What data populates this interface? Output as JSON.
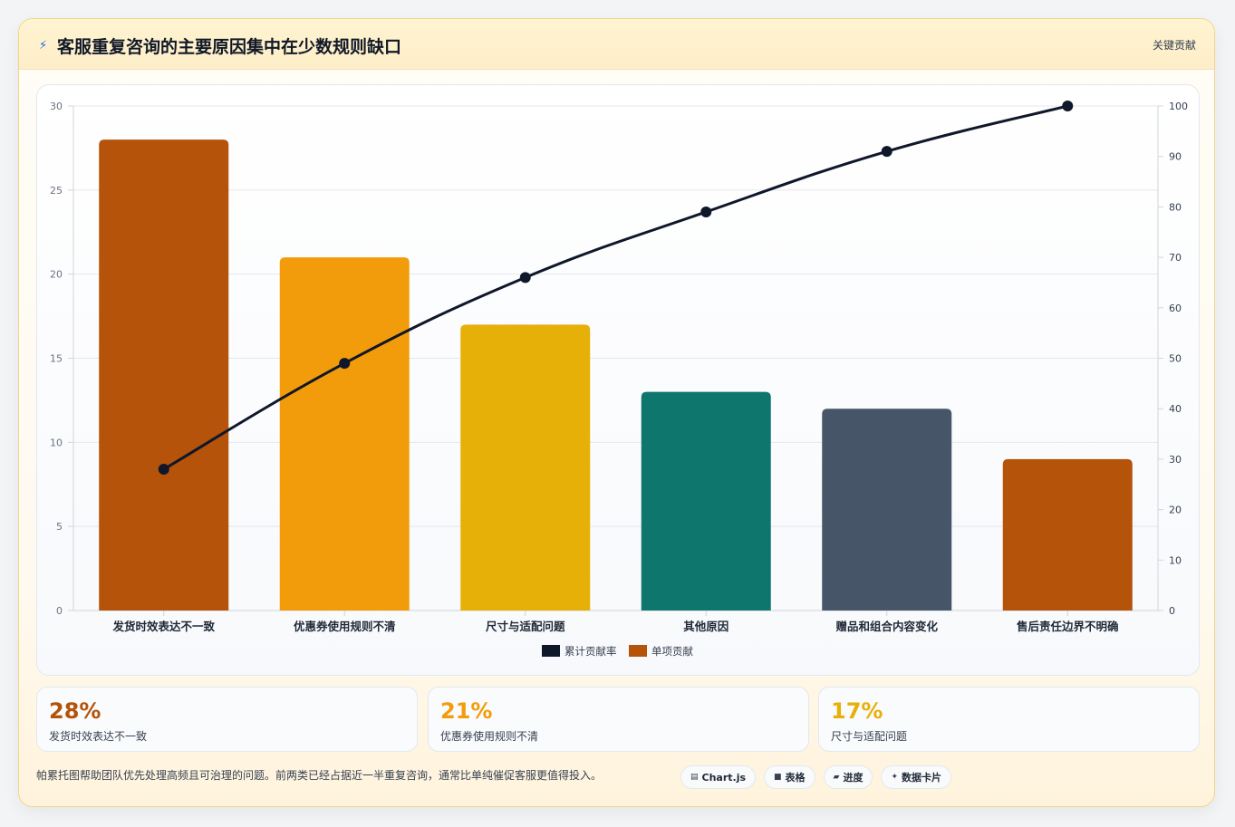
{
  "header": {
    "title": "客服重复咨询的主要原因集中在少数规则缺口",
    "title_icon": "lightning-icon",
    "right_label": "关键贡献"
  },
  "chart_data": {
    "type": "bar",
    "categories": [
      "发货时效表达不一致",
      "优惠券使用规则不清",
      "尺寸与适配问题",
      "其他原因",
      "赠品和组合内容变化",
      "售后责任边界不明确"
    ],
    "series": [
      {
        "name": "单项贡献",
        "type": "bar",
        "axis": "left",
        "values": [
          28,
          21,
          17,
          13,
          12,
          9
        ]
      },
      {
        "name": "累计贡献率",
        "type": "line",
        "axis": "right",
        "values": [
          28,
          49,
          66,
          79,
          91,
          100
        ]
      }
    ],
    "bar_colors": [
      "#b45309",
      "#f39c0b",
      "#e7b008",
      "#0f766e",
      "#475569",
      "#b45309"
    ],
    "line_color": "#0f172a",
    "left_axis": {
      "ylim": [
        0,
        30
      ],
      "ticks": [
        "0",
        "5",
        "10",
        "15",
        "20",
        "25",
        "30"
      ]
    },
    "right_axis": {
      "ylim": [
        0,
        100
      ],
      "ticks": [
        "0",
        "10",
        "20",
        "30",
        "40",
        "50",
        "60",
        "70",
        "80",
        "90",
        "100"
      ]
    },
    "legend": [
      {
        "label": "累计贡献率",
        "color": "#0f172a"
      },
      {
        "label": "单项贡献",
        "color": "#b45309"
      }
    ],
    "legend_position": "bottom",
    "grid": true
  },
  "stats": [
    {
      "value": "28%",
      "label": "发货时效表达不一致",
      "color": "#b45309"
    },
    {
      "value": "21%",
      "label": "优惠券使用规则不清",
      "color": "#f39c0b"
    },
    {
      "value": "17%",
      "label": "尺寸与适配问题",
      "color": "#e7b008"
    }
  ],
  "footer": {
    "text": "帕累托图帮助团队优先处理高频且可治理的问题。前两类已经占据近一半重复咨询，通常比单纯催促客服更值得投入。",
    "tags": [
      {
        "label": "Chart.js",
        "icon": "chart-icon"
      },
      {
        "label": "表格",
        "icon": "table-icon"
      },
      {
        "label": "进度",
        "icon": "progress-icon"
      },
      {
        "label": "数据卡片",
        "icon": "sparkle-icon"
      }
    ]
  }
}
